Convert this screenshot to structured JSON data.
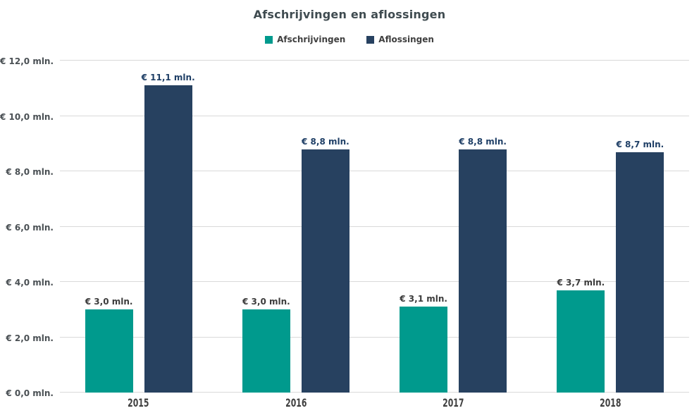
{
  "chart_data": {
    "type": "bar",
    "title": "Afschrijvingen en aflossingen",
    "categories": [
      "2015",
      "2016",
      "2017",
      "2018"
    ],
    "series": [
      {
        "name": "Afschrijvingen",
        "color": "#009A8D",
        "label_color": "#3C3C3C",
        "values": [
          3.0,
          3.0,
          3.1,
          3.7
        ],
        "labels": [
          "€ 3,0 mln.",
          "€ 3,0 mln.",
          "€ 3,1 mln.",
          "€ 3,7 mln."
        ]
      },
      {
        "name": "Aflossingen",
        "color": "#274160",
        "label_color": "#1F3F66",
        "values": [
          11.1,
          8.8,
          8.8,
          8.7
        ],
        "labels": [
          "€ 11,1 mln.",
          "€ 8,8 mln.",
          "€ 8,8 mln.",
          "€ 8,7 mln."
        ]
      }
    ],
    "y_axis": {
      "min": 0,
      "max": 12,
      "step": 2,
      "tick_labels": [
        "€ 0,0 mln.",
        "€ 2,0 mln.",
        "€ 4,0 mln.",
        "€ 6,0 mln.",
        "€ 8,0 mln.",
        "€ 10,0 mln.",
        "€ 12,0 mln."
      ]
    },
    "grid": true,
    "legend_position": "top",
    "colors": {
      "gridline": "#D9D9D9",
      "title": "#3F4B50",
      "axis_text": "#4A5054",
      "x_text": "#3F3F3F"
    }
  }
}
